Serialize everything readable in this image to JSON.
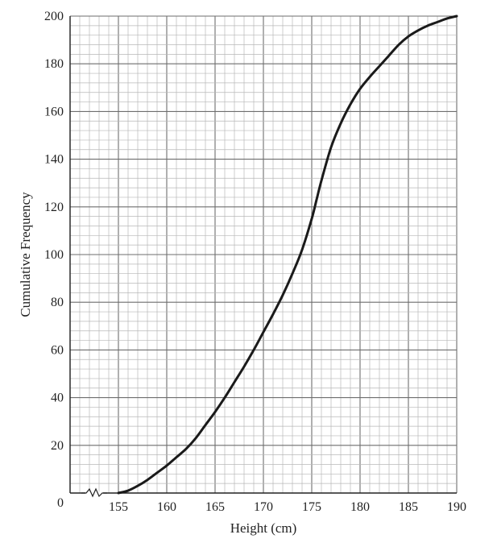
{
  "chart_data": {
    "type": "line",
    "title": "",
    "xlabel": "Height (cm)",
    "ylabel": "Cumulative Frequency",
    "origin_label": "0",
    "xlim": [
      150,
      190
    ],
    "ylim": [
      0,
      200
    ],
    "x_axis_break": true,
    "grid": true,
    "x_ticks": [
      155,
      160,
      165,
      170,
      175,
      180,
      185,
      190
    ],
    "y_ticks": [
      20,
      40,
      60,
      80,
      100,
      120,
      140,
      160,
      180,
      200
    ],
    "series": [
      {
        "x": [
          155,
          156,
          157,
          158,
          159,
          160,
          161,
          162,
          163,
          164,
          165,
          166,
          167,
          168,
          169,
          170,
          171,
          172,
          173,
          174,
          175,
          175.5,
          176,
          177,
          178,
          179,
          180,
          181,
          182,
          183,
          184,
          185,
          186,
          187,
          188,
          189,
          190
        ],
        "y": [
          0,
          1,
          3,
          5.5,
          8.5,
          11.5,
          15,
          18.5,
          23,
          28.5,
          34,
          40,
          46.5,
          53,
          60,
          67.5,
          75,
          83,
          92,
          102,
          115,
          123,
          131,
          145,
          155,
          163,
          169.5,
          174.5,
          179,
          183.5,
          188,
          191.5,
          194,
          196,
          197.5,
          199,
          200
        ],
        "color": "#1a1a1a"
      }
    ]
  }
}
